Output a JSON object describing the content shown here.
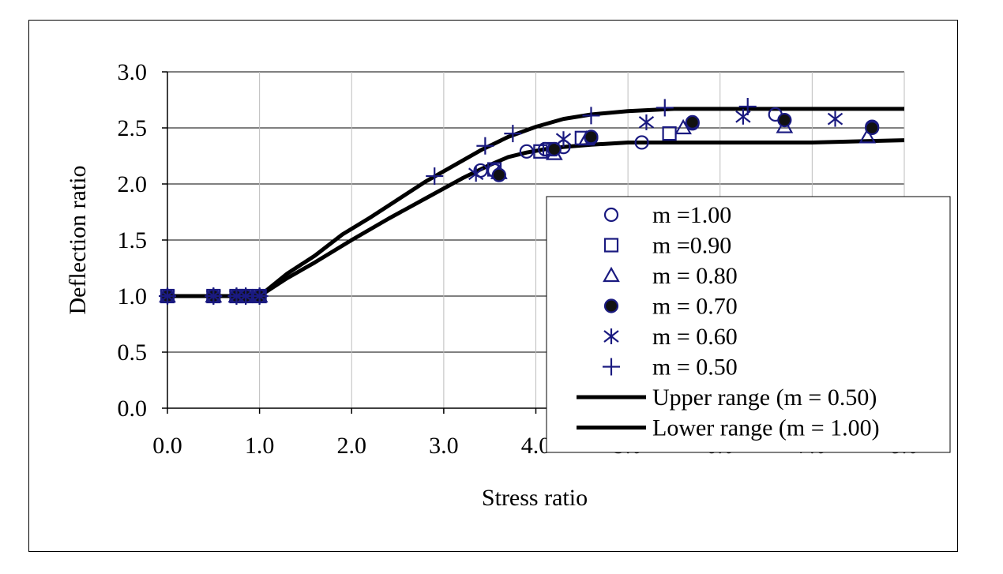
{
  "chart_data": {
    "type": "scatter",
    "title": "",
    "xlabel": "Stress ratio",
    "ylabel": "Deflection ratio",
    "xlim": [
      0,
      8
    ],
    "ylim": [
      0,
      3
    ],
    "x_ticks": [
      {
        "value": 0,
        "label": "0.0"
      },
      {
        "value": 1,
        "label": "1.0"
      },
      {
        "value": 2,
        "label": "2.0"
      },
      {
        "value": 3,
        "label": "3.0"
      },
      {
        "value": 4,
        "label": "4.0"
      },
      {
        "value": 5,
        "label": "5.0"
      },
      {
        "value": 6,
        "label": "6.0"
      },
      {
        "value": 7,
        "label": "7.0"
      },
      {
        "value": 8,
        "label": "8.0"
      }
    ],
    "y_ticks": [
      {
        "value": 0,
        "label": "0.0"
      },
      {
        "value": 0.5,
        "label": "0.5"
      },
      {
        "value": 1,
        "label": "1.0"
      },
      {
        "value": 1.5,
        "label": "1.5"
      },
      {
        "value": 2,
        "label": "2.0"
      },
      {
        "value": 2.5,
        "label": "2.5"
      },
      {
        "value": 3,
        "label": "3.0"
      }
    ],
    "grid": {
      "horizontal": true,
      "vertical": true
    },
    "legend_position": "bottom-right, inside plot",
    "marker_color": "#1a1a80",
    "curve_color": "#000000",
    "series": [
      {
        "name": "m =1.00",
        "marker": "circle",
        "x": [
          0,
          0.5,
          0.75,
          0.85,
          1.0,
          3.4,
          3.55,
          3.9,
          4.1,
          4.3,
          4.6,
          5.15,
          5.7,
          6.6,
          7.65
        ],
        "y": [
          1.0,
          1.0,
          1.0,
          1.0,
          1.0,
          2.12,
          2.12,
          2.29,
          2.31,
          2.33,
          2.41,
          2.37,
          2.54,
          2.62,
          2.51
        ]
      },
      {
        "name": "m =0.90",
        "marker": "square",
        "x": [
          0,
          0.5,
          0.75,
          0.85,
          1.0,
          3.55,
          4.05,
          4.15,
          4.5,
          5.45
        ],
        "y": [
          1.0,
          1.0,
          1.0,
          1.0,
          1.0,
          2.13,
          2.29,
          2.31,
          2.41,
          2.45
        ]
      },
      {
        "name": "m = 0.80",
        "marker": "triangle",
        "x": [
          0,
          0.5,
          0.75,
          0.85,
          1.0,
          3.6,
          4.2,
          4.55,
          5.6,
          6.7,
          7.6
        ],
        "y": [
          1.0,
          1.0,
          1.0,
          1.0,
          1.0,
          2.1,
          2.27,
          2.4,
          2.5,
          2.51,
          2.42
        ]
      },
      {
        "name": "m = 0.70",
        "marker": "filled-circle",
        "x": [
          0,
          0.5,
          0.75,
          0.85,
          1.0,
          3.6,
          4.2,
          4.6,
          5.7,
          6.7,
          7.65
        ],
        "y": [
          1.0,
          1.0,
          1.0,
          1.0,
          1.0,
          2.08,
          2.31,
          2.42,
          2.55,
          2.57,
          2.5
        ]
      },
      {
        "name": "m = 0.60",
        "marker": "asterisk",
        "x": [
          0,
          0.5,
          0.75,
          0.85,
          1.0,
          3.35,
          4.3,
          5.2,
          6.25,
          7.25
        ],
        "y": [
          1.0,
          1.0,
          1.0,
          1.0,
          1.0,
          2.09,
          2.4,
          2.55,
          2.6,
          2.58
        ]
      },
      {
        "name": "m = 0.50",
        "marker": "plus",
        "x": [
          0,
          0.5,
          0.75,
          0.85,
          1.0,
          2.9,
          3.45,
          3.75,
          4.6,
          5.4,
          6.3
        ],
        "y": [
          1.0,
          1.0,
          1.0,
          1.0,
          1.0,
          2.07,
          2.34,
          2.45,
          2.61,
          2.68,
          2.69
        ]
      }
    ],
    "curves": [
      {
        "name": "Upper range (m = 0.50)",
        "x": [
          0,
          1.0,
          1.3,
          1.6,
          1.9,
          2.2,
          2.5,
          2.8,
          3.1,
          3.4,
          3.7,
          4.0,
          4.3,
          4.6,
          5.0,
          5.5,
          6.0,
          6.5,
          7.0,
          7.5,
          8.0
        ],
        "y": [
          1.0,
          1.0,
          1.2,
          1.36,
          1.55,
          1.7,
          1.86,
          2.02,
          2.16,
          2.3,
          2.42,
          2.51,
          2.58,
          2.62,
          2.65,
          2.67,
          2.67,
          2.67,
          2.67,
          2.67,
          2.67
        ]
      },
      {
        "name": "Lower range (m = 1.00)",
        "x": [
          0,
          1.0,
          1.3,
          1.6,
          2.0,
          2.4,
          2.8,
          3.2,
          3.5,
          3.7,
          3.9,
          4.1,
          4.3,
          4.6,
          5.0,
          5.5,
          6.0,
          6.5,
          7.0,
          7.5,
          8.0
        ],
        "y": [
          1.0,
          1.0,
          1.16,
          1.3,
          1.5,
          1.69,
          1.87,
          2.05,
          2.17,
          2.24,
          2.28,
          2.31,
          2.33,
          2.35,
          2.37,
          2.37,
          2.37,
          2.37,
          2.37,
          2.38,
          2.39
        ]
      }
    ]
  }
}
